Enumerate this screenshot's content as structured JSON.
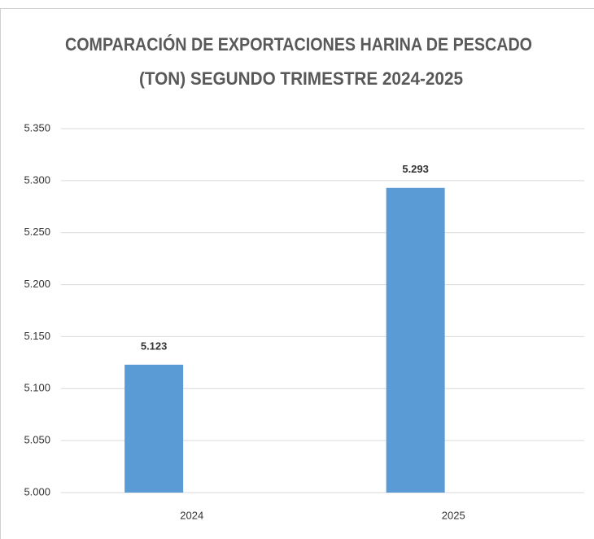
{
  "chart_data": {
    "type": "bar",
    "title": [
      "COMPARACIÓN DE EXPORTACIONES HARINA DE PESCADO",
      "(TON) SEGUNDO TRIMESTRE 2024-2025"
    ],
    "categories": [
      "2024",
      "2025"
    ],
    "values": [
      5123,
      5293
    ],
    "value_labels": [
      "5.123",
      "5.293"
    ],
    "color": "#5b9bd5",
    "ylim": [
      5000,
      5350
    ],
    "yticks": [
      {
        "value": 5000,
        "label": "5.000"
      },
      {
        "value": 5050,
        "label": "5.050"
      },
      {
        "value": 5100,
        "label": "5.100"
      },
      {
        "value": 5150,
        "label": "5.150"
      },
      {
        "value": 5200,
        "label": "5.200"
      },
      {
        "value": 5250,
        "label": "5.250"
      },
      {
        "value": 5300,
        "label": "5.300"
      },
      {
        "value": 5350,
        "label": "5.350"
      }
    ],
    "grid": true
  }
}
